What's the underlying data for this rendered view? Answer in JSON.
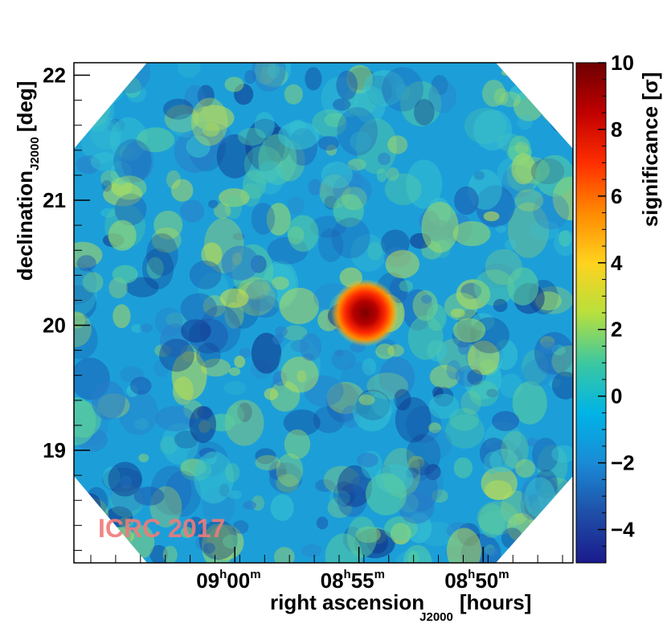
{
  "chart_data": {
    "type": "heatmap",
    "title": "",
    "xlabel": {
      "main": "right ascension",
      "subscript": "J2000",
      "unit": "[hours]"
    },
    "ylabel": {
      "main": "declination",
      "subscript": "J2000",
      "unit": "[deg]"
    },
    "colorbar_label": "significance [σ]",
    "x_axis": {
      "reversed": true,
      "range_minutes": [
        8.773,
        9.108
      ],
      "ticks": [
        {
          "value": 9.0,
          "hours": "09",
          "minutes": "00"
        },
        {
          "value": 8.9167,
          "hours": "08",
          "minutes": "55"
        },
        {
          "value": 8.8333,
          "hours": "08",
          "minutes": "50"
        }
      ]
    },
    "y_axis": {
      "range": [
        18.1,
        22.1
      ],
      "ticks": [
        {
          "value": 19,
          "label": "19"
        },
        {
          "value": 20,
          "label": "20"
        },
        {
          "value": 21,
          "label": "21"
        },
        {
          "value": 22,
          "label": "22"
        }
      ]
    },
    "colorbar": {
      "range": [
        -5,
        10
      ],
      "ticks": [
        {
          "value": -4,
          "label": "−4"
        },
        {
          "value": -2,
          "label": "−2"
        },
        {
          "value": 0,
          "label": "0"
        },
        {
          "value": 2,
          "label": "2"
        },
        {
          "value": 4,
          "label": "4"
        },
        {
          "value": 6,
          "label": "6"
        },
        {
          "value": 8,
          "label": "8"
        },
        {
          "value": 10,
          "label": "10"
        }
      ],
      "colors": [
        "#1a1a8c",
        "#1f4fa8",
        "#1a8bd6",
        "#00b4e6",
        "#3cc8a0",
        "#b8e03c",
        "#ffd21e",
        "#ff8a00",
        "#ff2d00",
        "#c00000",
        "#6e0000"
      ]
    },
    "source": {
      "ra": 8.9125,
      "dec": 20.1,
      "significance": 10
    },
    "background_significance_range": [
      -4,
      4
    ]
  },
  "watermark": "ICRC 2017"
}
